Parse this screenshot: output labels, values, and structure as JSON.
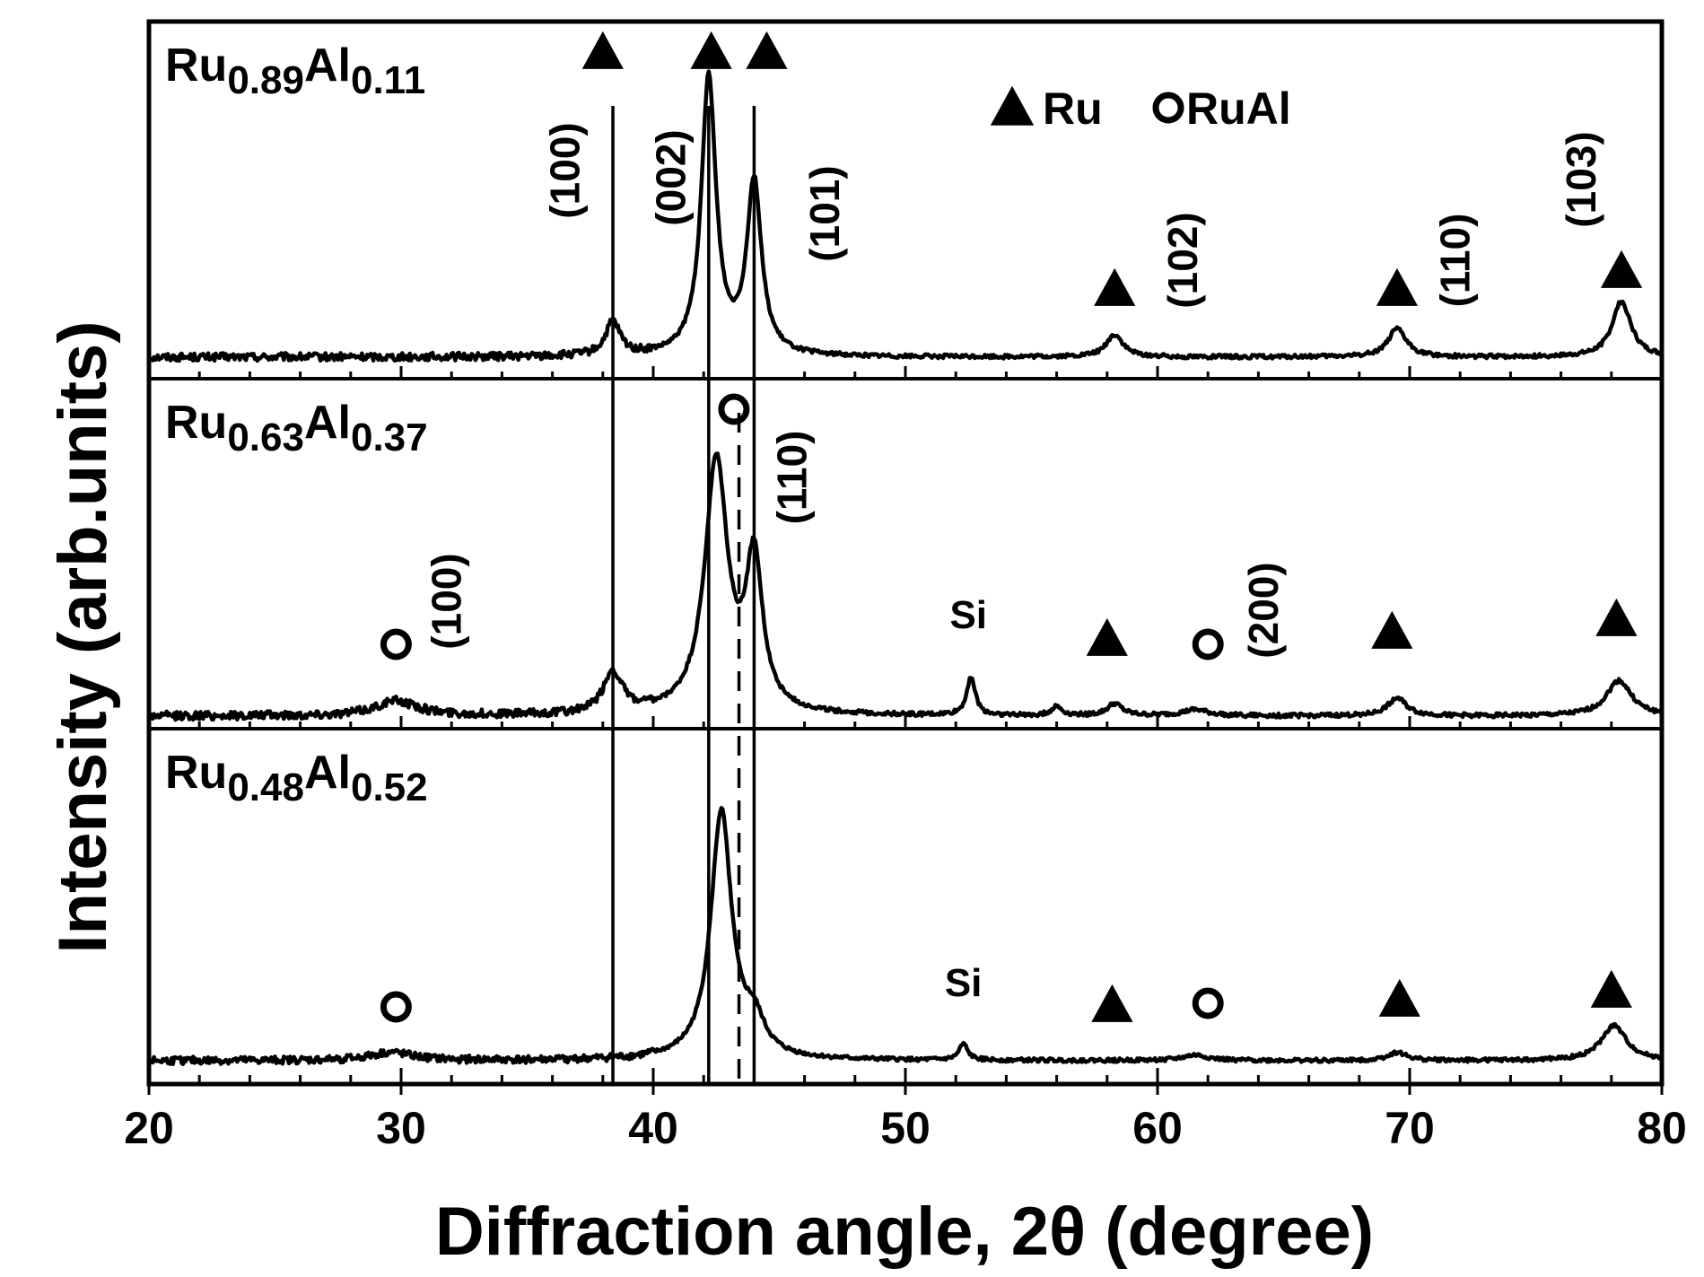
{
  "chart_data": {
    "type": "line",
    "xlabel": "Diffraction angle, 2θ (degree)",
    "ylabel": "Intensity (arb.units)",
    "xlim": [
      20,
      80
    ],
    "xticks": [
      "20",
      "30",
      "40",
      "50",
      "60",
      "70",
      "80"
    ],
    "grid": false,
    "legend": {
      "placement": "top-right of upper panel",
      "entries": [
        {
          "marker": "triangle",
          "label": "Ru"
        },
        {
          "marker": "circle",
          "label": "RuAl"
        }
      ]
    },
    "reference_lines": [
      {
        "x": 38.4,
        "style": "solid"
      },
      {
        "x": 42.2,
        "style": "solid"
      },
      {
        "x": 44.0,
        "style": "solid"
      },
      {
        "x": 43.4,
        "style": "dashed"
      }
    ],
    "panels": [
      {
        "label_main": "Ru",
        "label_sub1": "0.89",
        "label_mid": "Al",
        "label_sub2": "0.11",
        "peaks": [
          {
            "x": 38.4,
            "height": 0.12,
            "width": 0.35
          },
          {
            "x": 42.2,
            "height": 1.0,
            "width": 0.35
          },
          {
            "x": 44.0,
            "height": 0.62,
            "width": 0.35
          },
          {
            "x": 58.3,
            "height": 0.08,
            "width": 0.4
          },
          {
            "x": 69.5,
            "height": 0.1,
            "width": 0.45
          },
          {
            "x": 78.4,
            "height": 0.2,
            "width": 0.45
          }
        ],
        "markers": [
          {
            "type": "triangle",
            "x": 38.0
          },
          {
            "type": "triangle",
            "x": 42.3
          },
          {
            "type": "triangle",
            "x": 44.5
          },
          {
            "type": "triangle",
            "x": 58.3
          },
          {
            "type": "triangle",
            "x": 69.5
          },
          {
            "type": "triangle",
            "x": 78.4
          }
        ],
        "annotations": [
          {
            "text": "(100)",
            "x": 36.5
          },
          {
            "text": "(002)",
            "x": 40.7
          },
          {
            "text": "(101)",
            "x": 46.8
          },
          {
            "text": "(102)",
            "x": 61.0
          },
          {
            "text": "(110)",
            "x": 71.8
          },
          {
            "text": "(103)",
            "x": 76.8
          }
        ]
      },
      {
        "label_main": "Ru",
        "label_sub1": "0.63",
        "label_mid": "Al",
        "label_sub2": "0.37",
        "peaks": [
          {
            "x": 29.8,
            "height": 0.05,
            "width": 1.0
          },
          {
            "x": 38.4,
            "height": 0.14,
            "width": 0.45
          },
          {
            "x": 42.5,
            "height": 0.85,
            "width": 0.55
          },
          {
            "x": 44.0,
            "height": 0.5,
            "width": 0.4
          },
          {
            "x": 52.6,
            "height": 0.13,
            "width": 0.2
          },
          {
            "x": 56.0,
            "height": 0.03,
            "width": 0.25
          },
          {
            "x": 58.3,
            "height": 0.04,
            "width": 0.35
          },
          {
            "x": 61.5,
            "height": 0.02,
            "width": 0.6
          },
          {
            "x": 69.5,
            "height": 0.06,
            "width": 0.45
          },
          {
            "x": 78.3,
            "height": 0.12,
            "width": 0.6
          }
        ],
        "markers": [
          {
            "type": "circle",
            "x": 29.8
          },
          {
            "type": "circle",
            "x": 43.2
          },
          {
            "type": "circle",
            "x": 62.0
          },
          {
            "type": "triangle",
            "x": 58.0
          },
          {
            "type": "triangle",
            "x": 69.3
          },
          {
            "type": "triangle",
            "x": 78.2
          }
        ],
        "annotations": [
          {
            "text": "(100)",
            "x": 31.8
          },
          {
            "text": "(110)",
            "x": 45.5
          },
          {
            "text": "(200)",
            "x": 64.2
          }
        ],
        "si_label": {
          "text": "Si",
          "x": 52.5
        }
      },
      {
        "label_main": "Ru",
        "label_sub1": "0.48",
        "label_mid": "Al",
        "label_sub2": "0.52",
        "peaks": [
          {
            "x": 29.6,
            "height": 0.03,
            "width": 1.0
          },
          {
            "x": 42.7,
            "height": 0.92,
            "width": 0.5
          },
          {
            "x": 44.0,
            "height": 0.12,
            "width": 0.5
          },
          {
            "x": 52.3,
            "height": 0.06,
            "width": 0.2
          },
          {
            "x": 61.5,
            "height": 0.02,
            "width": 0.6
          },
          {
            "x": 69.5,
            "height": 0.03,
            "width": 0.45
          },
          {
            "x": 78.1,
            "height": 0.13,
            "width": 0.6
          }
        ],
        "markers": [
          {
            "type": "circle",
            "x": 29.8
          },
          {
            "type": "circle",
            "x": 62.0
          },
          {
            "type": "triangle",
            "x": 58.2
          },
          {
            "type": "triangle",
            "x": 69.6
          },
          {
            "type": "triangle",
            "x": 78.0
          }
        ],
        "annotations": [],
        "si_label": {
          "text": "Si",
          "x": 52.3
        }
      }
    ]
  }
}
